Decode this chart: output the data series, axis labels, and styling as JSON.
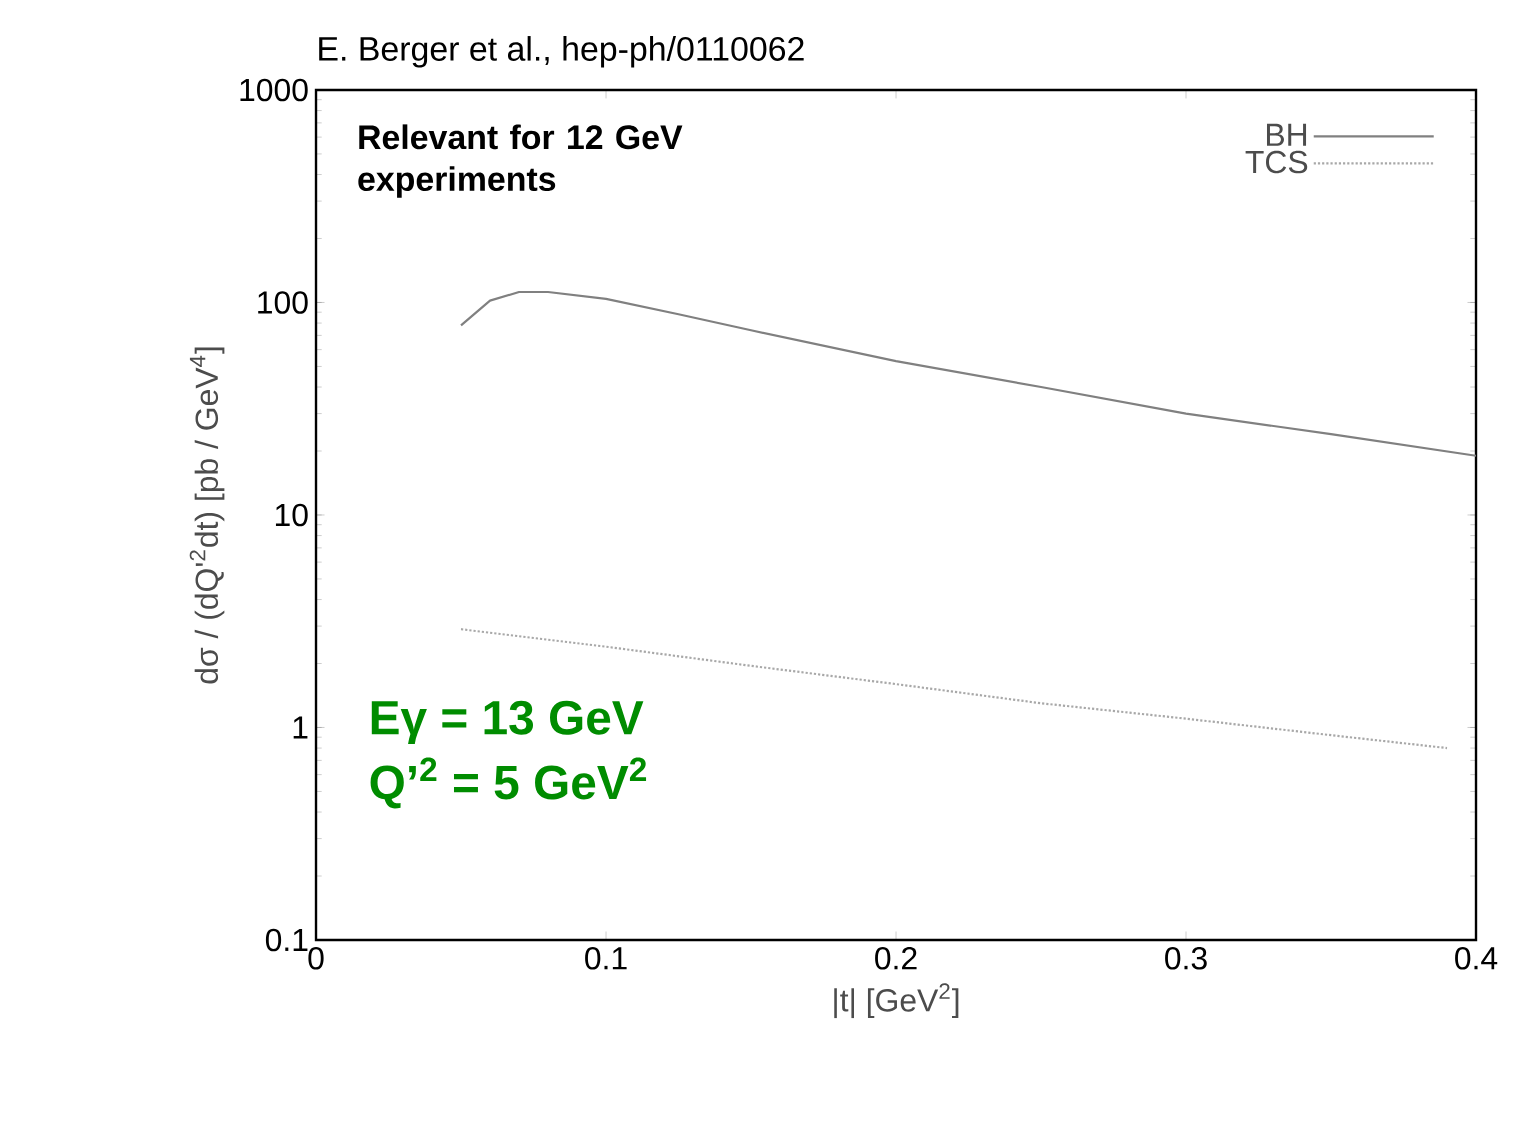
{
  "chart_data": {
    "type": "line",
    "title": "E. Berger et al., hep-ph/0110062",
    "xlabel": "|t|  [GeV$^{2}$]",
    "ylabel": "dσ / (dQ'$^{2}$dt)  [pb / GeV$^{4}$]",
    "log": "y",
    "xlim": [
      0,
      0.4
    ],
    "ylim": [
      0.1,
      1000
    ],
    "xticks": [
      0,
      0.1,
      0.2,
      0.3,
      0.4
    ],
    "yticks": [
      0.1,
      1,
      10,
      100,
      1000
    ],
    "grid": false,
    "legend": "top right",
    "marker": "none",
    "series": [
      {
        "name": "BH",
        "color": "#808080",
        "line_style": "solid",
        "x": [
          0.05,
          0.06,
          0.07,
          0.08,
          0.1,
          0.125,
          0.15,
          0.2,
          0.25,
          0.3,
          0.35,
          0.4
        ],
        "values": [
          78,
          102,
          112,
          112,
          104,
          88,
          74,
          53,
          40,
          30,
          24,
          19
        ]
      },
      {
        "name": "TCS",
        "color": "#a8a8a8",
        "line_style": "dotted",
        "x": [
          0.05,
          0.1,
          0.15,
          0.2,
          0.25,
          0.3,
          0.35,
          0.39
        ],
        "values": [
          2.9,
          2.4,
          1.95,
          1.6,
          1.3,
          1.1,
          0.92,
          0.8
        ]
      }
    ],
    "annotations": [
      "Relevant for 12 GeV experiments",
      "Eγ = 13 GeV",
      "Q’$^{2}$ = 5 GeV$^{2}$"
    ]
  }
}
